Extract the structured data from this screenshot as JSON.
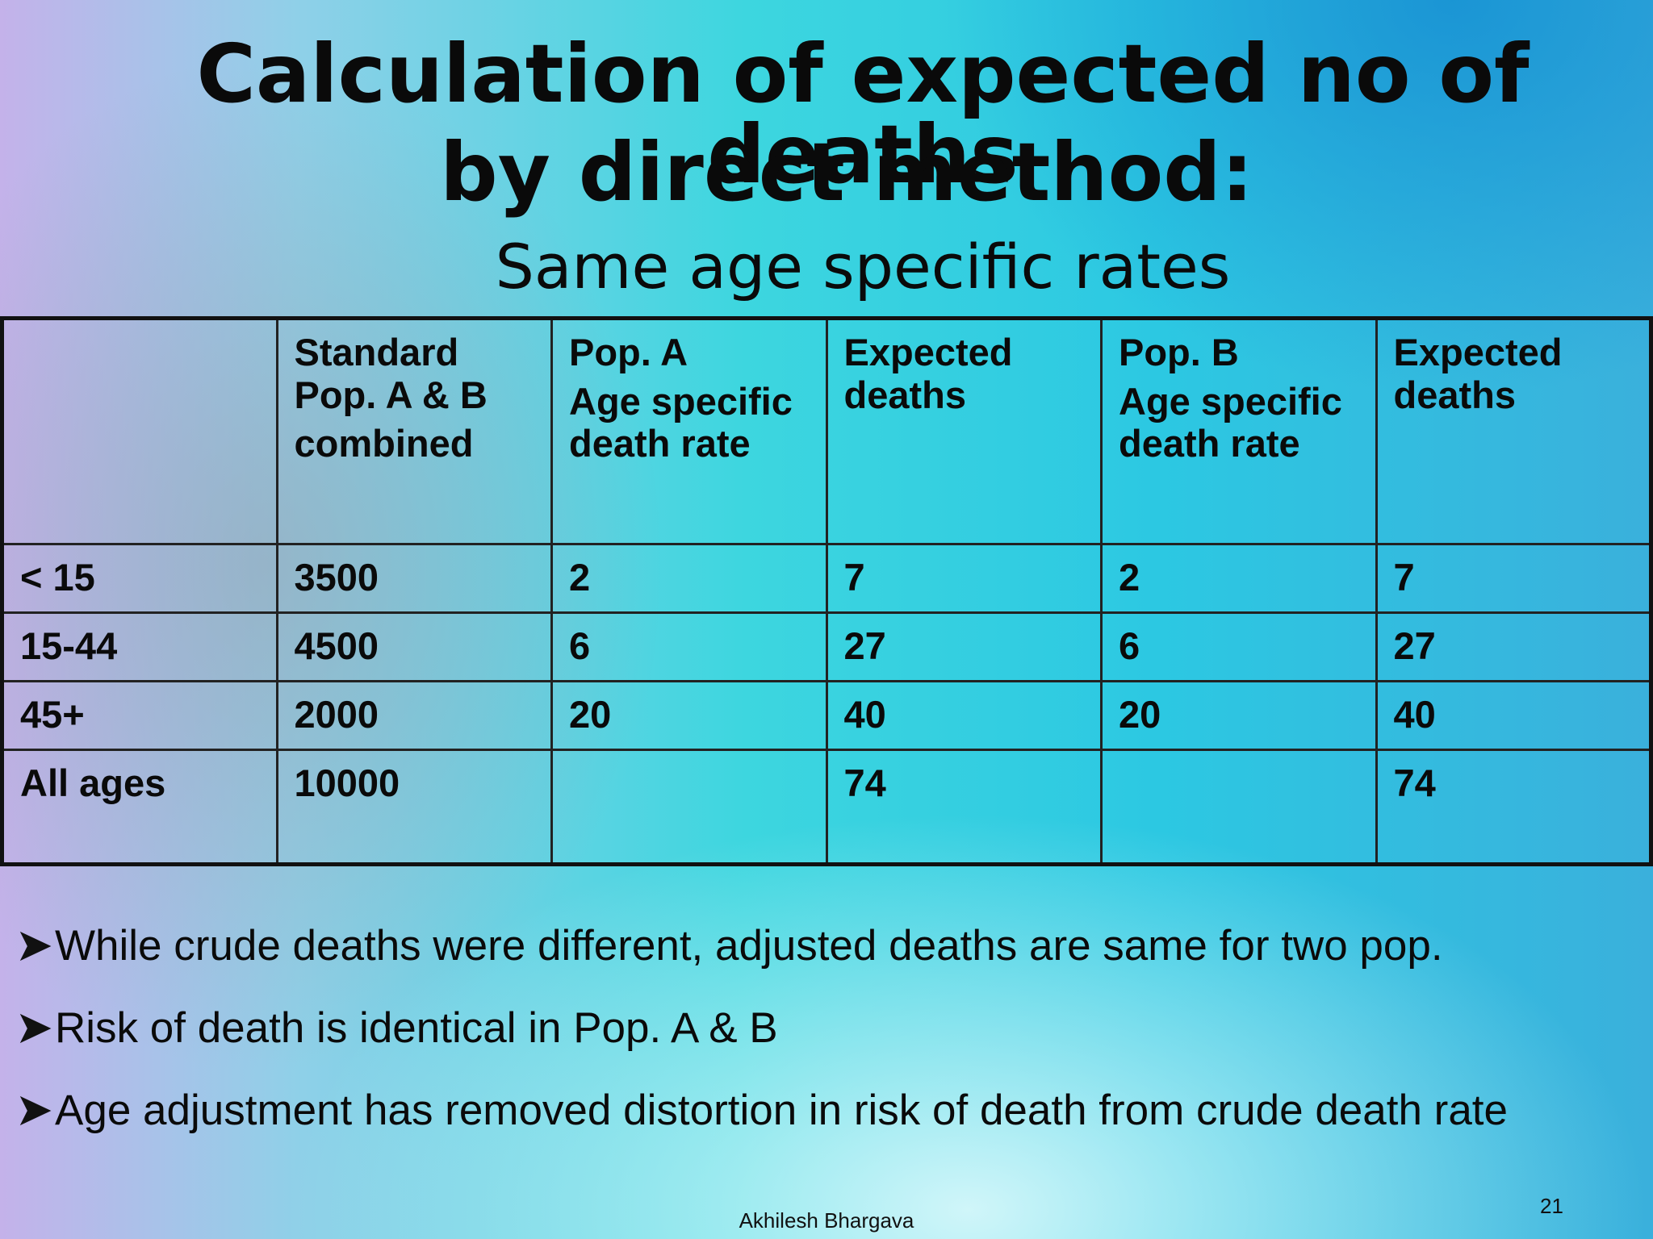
{
  "header": {
    "title": [
      "Calculation of expected no of deaths",
      "by direct method:"
    ],
    "subtitle": "Same age specific rates"
  },
  "table": {
    "columns": [
      null,
      [
        "Standard Pop. A & B",
        "combined"
      ],
      [
        "Pop. A",
        "Age specific death rate"
      ],
      [
        "Expected deaths"
      ],
      [
        "Pop. B",
        "Age specific death rate"
      ],
      [
        "Expected deaths"
      ]
    ],
    "rows": [
      [
        "< 15",
        "3500",
        "2",
        "7",
        "2",
        "7"
      ],
      [
        "15-44",
        "4500",
        "6",
        "27",
        "6",
        "27"
      ],
      [
        "45+",
        "2000",
        "20",
        "40",
        "20",
        "40"
      ],
      [
        "All ages",
        "10000",
        null,
        "74",
        null,
        "74"
      ]
    ]
  },
  "bullets": [
    "While crude deaths were different, adjusted deaths are same for two pop.",
    "Risk of death is identical in Pop. A & B",
    "Age adjustment has removed distortion in risk of death from crude death rate"
  ],
  "footer": {
    "author": "Akhilesh Bhargava",
    "page_number": "21"
  }
}
